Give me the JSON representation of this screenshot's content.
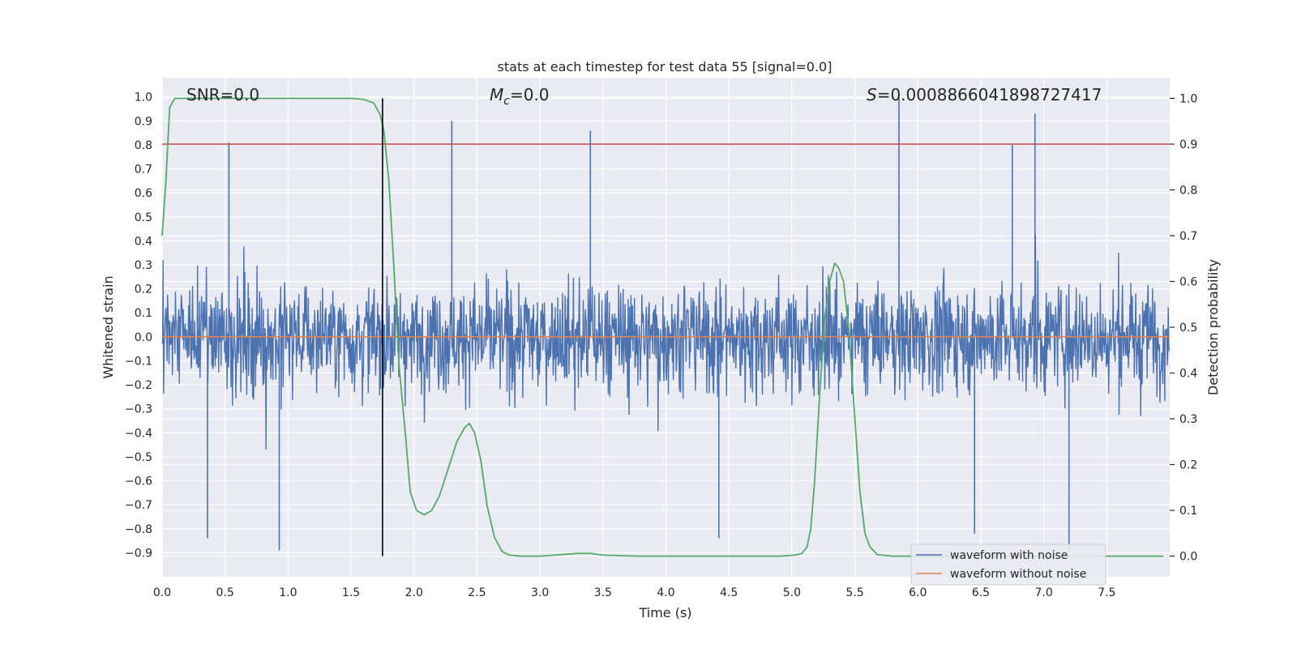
{
  "chart_data": {
    "type": "line",
    "title": "stats at each timestep for test data 55 [signal=0.0]",
    "xlabel": "Time (s)",
    "ylabel": "Whitened strain",
    "ylabel_right": "Detection probability",
    "xlim": [
      0.0,
      8.0
    ],
    "ylim": [
      -1.0,
      1.08
    ],
    "ylim_right": [
      -0.045,
      1.045
    ],
    "x_ticks": [
      "0.0",
      "0.5",
      "1.0",
      "1.5",
      "2.0",
      "2.5",
      "3.0",
      "3.5",
      "4.0",
      "4.5",
      "5.0",
      "5.5",
      "6.0",
      "6.5",
      "7.0",
      "7.5"
    ],
    "y_ticks": [
      "−0.9",
      "−0.8",
      "−0.7",
      "−0.6",
      "−0.5",
      "−0.4",
      "−0.3",
      "−0.2",
      "−0.1",
      "0.0",
      "0.1",
      "0.2",
      "0.3",
      "0.4",
      "0.5",
      "0.6",
      "0.7",
      "0.8",
      "0.9",
      "1.0"
    ],
    "y_ticks_right": [
      "0.0",
      "0.1",
      "0.2",
      "0.3",
      "0.4",
      "0.5",
      "0.6",
      "0.7",
      "0.8",
      "0.9",
      "1.0"
    ],
    "grid": true,
    "legend_position": "lower-right",
    "annotations": {
      "snr": "SNR=0.0",
      "mc_symbol": "M",
      "mc_subscript": "c",
      "mc_value": "=0.0",
      "s_symbol": "S",
      "s_value": "=0.0008866041898727417"
    },
    "threshold": {
      "value": 0.9,
      "axis": "right",
      "color": "#c44e52"
    },
    "marker_time": 1.75,
    "series": [
      {
        "name": "waveform with noise",
        "color": "#4c72b0",
        "kind": "noise",
        "range": [
          -0.9,
          1.0
        ],
        "sample_rate_hz": 256,
        "spike_peaks": [
          {
            "x": 2.3,
            "y": 0.9
          },
          {
            "x": 3.4,
            "y": 0.86
          },
          {
            "x": 5.85,
            "y": 1.0
          },
          {
            "x": 6.93,
            "y": 0.93
          },
          {
            "x": 6.75,
            "y": 0.8
          },
          {
            "x": 0.53,
            "y": 0.81
          },
          {
            "x": 0.93,
            "y": -0.89
          },
          {
            "x": 0.36,
            "y": -0.84
          },
          {
            "x": 4.42,
            "y": -0.84
          },
          {
            "x": 7.2,
            "y": -0.88
          },
          {
            "x": 6.45,
            "y": -0.82
          }
        ]
      },
      {
        "name": "waveform without noise",
        "color": "#dd8452",
        "x": [
          0.0,
          8.0
        ],
        "y": [
          0.0,
          0.0
        ]
      },
      {
        "name": "",
        "axis": "right",
        "color": "#55a868",
        "x": [
          0.0,
          0.03,
          0.06,
          0.1,
          0.15,
          0.2,
          0.3,
          0.5,
          1.0,
          1.5,
          1.6,
          1.68,
          1.73,
          1.76,
          1.8,
          1.84,
          1.88,
          1.93,
          1.97,
          2.02,
          2.08,
          2.14,
          2.2,
          2.27,
          2.34,
          2.4,
          2.44,
          2.48,
          2.53,
          2.58,
          2.64,
          2.7,
          2.76,
          2.85,
          3.0,
          3.3,
          3.4,
          3.5,
          3.8,
          4.2,
          4.6,
          4.9,
          5.02,
          5.08,
          5.12,
          5.15,
          5.18,
          5.22,
          5.26,
          5.3,
          5.34,
          5.37,
          5.41,
          5.45,
          5.5,
          5.54,
          5.58,
          5.62,
          5.68,
          5.8,
          6.0,
          7.0,
          7.95
        ],
        "y": [
          0.7,
          0.82,
          0.98,
          1.0,
          1.0,
          1.0,
          1.0,
          1.0,
          1.0,
          1.0,
          0.998,
          0.99,
          0.965,
          0.93,
          0.82,
          0.63,
          0.42,
          0.27,
          0.14,
          0.1,
          0.09,
          0.1,
          0.13,
          0.19,
          0.25,
          0.28,
          0.29,
          0.27,
          0.21,
          0.11,
          0.04,
          0.01,
          0.002,
          0.0,
          0.0,
          0.006,
          0.006,
          0.002,
          0.0,
          0.0,
          0.0,
          0.0,
          0.002,
          0.006,
          0.02,
          0.06,
          0.16,
          0.35,
          0.52,
          0.6,
          0.64,
          0.63,
          0.6,
          0.5,
          0.3,
          0.14,
          0.05,
          0.02,
          0.003,
          0.0,
          0.0,
          0.0,
          0.0
        ]
      }
    ]
  }
}
